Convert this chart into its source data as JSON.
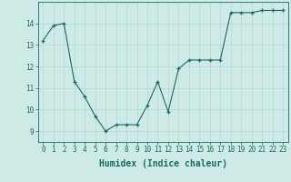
{
  "x": [
    0,
    1,
    2,
    3,
    4,
    5,
    6,
    7,
    8,
    9,
    10,
    11,
    12,
    13,
    14,
    15,
    16,
    17,
    18,
    19,
    20,
    21,
    22,
    23
  ],
  "y": [
    13.2,
    13.9,
    14.0,
    11.3,
    10.6,
    9.7,
    9.0,
    9.3,
    9.3,
    9.3,
    10.2,
    11.3,
    9.9,
    11.9,
    12.3,
    12.3,
    12.3,
    12.3,
    14.5,
    14.5,
    14.5,
    14.6,
    14.6,
    14.6
  ],
  "line_color": "#1a6b5e",
  "marker": "+",
  "marker_size": 3,
  "bg_color": "#ceeae7",
  "grid_color": "#b0d8d4",
  "xlabel": "Humidex (Indice chaleur)",
  "xlabel_fontsize": 7,
  "tick_fontsize": 5.5,
  "xlim": [
    -0.5,
    23.5
  ],
  "ylim": [
    8.5,
    15.0
  ],
  "yticks": [
    9,
    10,
    11,
    12,
    13,
    14
  ],
  "xticks": [
    0,
    1,
    2,
    3,
    4,
    5,
    6,
    7,
    8,
    9,
    10,
    11,
    12,
    13,
    14,
    15,
    16,
    17,
    18,
    19,
    20,
    21,
    22,
    23
  ]
}
